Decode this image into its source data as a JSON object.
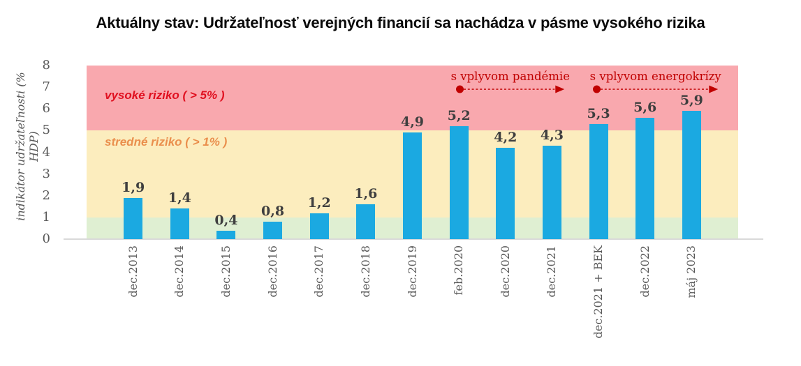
{
  "title": "Aktuálny stav: Udržateľnosť verejných financií sa nachádza v pásme vysokého rizika",
  "chart_data": {
    "type": "bar",
    "categories": [
      "dec.2013",
      "dec.2014",
      "dec.2015",
      "dec.2016",
      "dec.2017",
      "dec.2018",
      "dec.2019",
      "feb.2020",
      "dec.2020",
      "dec.2021",
      "dec.2021 + BEK",
      "dec.2022",
      "máj 2023"
    ],
    "values": [
      1.9,
      1.4,
      0.4,
      0.8,
      1.2,
      1.6,
      4.9,
      5.2,
      4.2,
      4.3,
      5.3,
      5.6,
      5.9
    ],
    "value_labels": [
      "1,9",
      "1,4",
      "0,4",
      "0,8",
      "1,2",
      "1,6",
      "4,9",
      "5,2",
      "4,2",
      "4,3",
      "5,3",
      "5,6",
      "5,9"
    ],
    "xlabel": "",
    "ylabel": "indikátor udržateľnosti (% HDP)",
    "ylim": [
      0,
      8
    ],
    "y_ticks": [
      0,
      1,
      2,
      3,
      4,
      5,
      6,
      7,
      8
    ],
    "grid": false,
    "legend": "none",
    "bar_color": "#1ba9e1",
    "axis_line_color": "#d9d9d9",
    "tick_color": "#595959",
    "value_label_color": "#3f3f3f",
    "bands": [
      {
        "label": "vysoké riziko ( > 5% )",
        "from": 5,
        "to": 8,
        "bg": "#f9a8ae",
        "label_color": "#e01020"
      },
      {
        "label": "stredné riziko ( > 1% )",
        "from": 1,
        "to": 5,
        "bg": "#fcedbe",
        "label_color": "#ea8f4d"
      },
      {
        "label": "",
        "from": 0,
        "to": 1,
        "bg": "#dfefd2",
        "label_color": ""
      }
    ],
    "annotations": [
      {
        "text": "s vplyvom pandémie",
        "color": "#c00000",
        "arrow_from_category": "feb.2020",
        "arrow_to_category": "dec.2021"
      },
      {
        "text": "s vplyvom energokrízy",
        "color": "#c00000",
        "arrow_from_category": "dec.2021 + BEK",
        "arrow_to_category": "máj 2023"
      }
    ]
  }
}
